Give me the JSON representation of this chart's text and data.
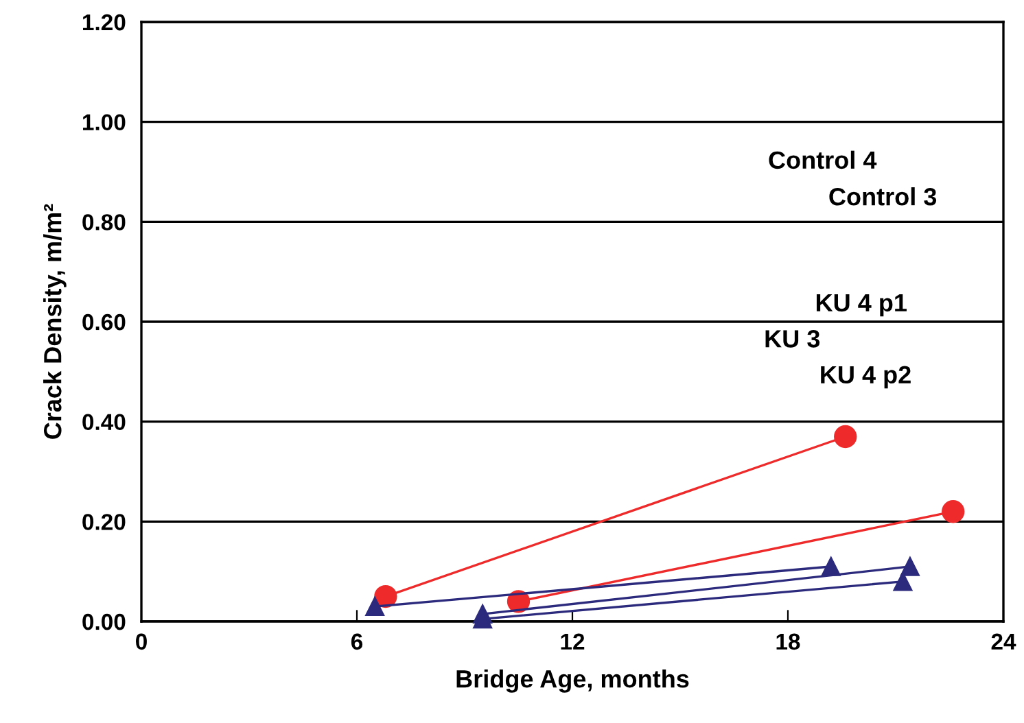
{
  "chart_data": {
    "type": "line",
    "xlabel": "Bridge Age, months",
    "ylabel": "Crack Density, m/m²",
    "xlim": [
      0,
      24
    ],
    "xticks": [
      0,
      6,
      12,
      18,
      24
    ],
    "ylim": [
      0,
      1.2
    ],
    "yticks": [
      {
        "value": 0,
        "label": "0.00"
      },
      {
        "value": 0.2,
        "label": "0.20"
      },
      {
        "value": 0.4,
        "label": "0.40"
      },
      {
        "value": 0.6,
        "label": "0.60"
      },
      {
        "value": 0.8,
        "label": "0.80"
      },
      {
        "value": 1,
        "label": "1.00"
      },
      {
        "value": 1.2,
        "label": "1.20"
      }
    ],
    "grid": "y",
    "series": [
      {
        "color": "#ee2a2a",
        "marker": "circle",
        "x": [
          6.8,
          19.6
        ],
        "values": [
          0.05,
          0.37
        ]
      },
      {
        "color": "#ee2a2a",
        "marker": "circle",
        "x": [
          10.5,
          22.6
        ],
        "values": [
          0.04,
          0.22
        ]
      },
      {
        "color": "#2b2a7c",
        "marker": "triangle",
        "x": [
          6.5,
          19.2
        ],
        "values": [
          0.03,
          0.11
        ]
      },
      {
        "color": "#2b2a7c",
        "marker": "triangle",
        "x": [
          9.5,
          21.4
        ],
        "values": [
          0.015,
          0.11
        ]
      },
      {
        "color": "#2b2a7c",
        "marker": "triangle",
        "x": [
          9.5,
          21.2
        ],
        "values": [
          0.005,
          0.08
        ]
      }
    ],
    "annotations": [
      "Control 4",
      "Control 3",
      "KU 4 p1",
      "KU 3",
      "KU 4 p2"
    ]
  }
}
